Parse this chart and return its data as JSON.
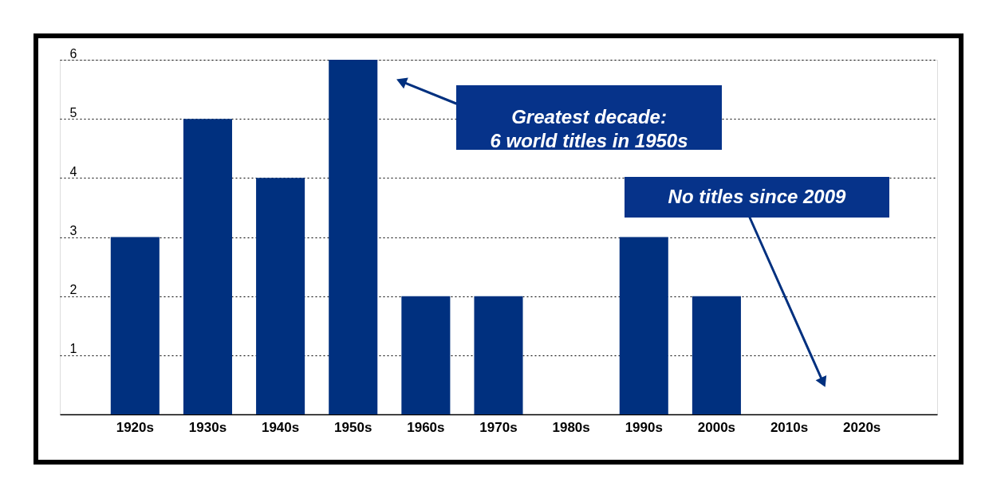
{
  "chart_data": {
    "type": "bar",
    "categories": [
      "1920s",
      "1930s",
      "1940s",
      "1950s",
      "1960s",
      "1970s",
      "1980s",
      "1990s",
      "2000s",
      "2010s",
      "2020s"
    ],
    "values": [
      3,
      5,
      4,
      6,
      2,
      2,
      0,
      3,
      2,
      0,
      0
    ],
    "color": "#00307f",
    "ylim": [
      0,
      6
    ],
    "yticks": [
      1,
      2,
      3,
      4,
      5,
      6
    ],
    "grid": "y",
    "annotations": [
      "Greatest decade:\n6 world titles in 1950s",
      "No titles since 2009"
    ]
  }
}
